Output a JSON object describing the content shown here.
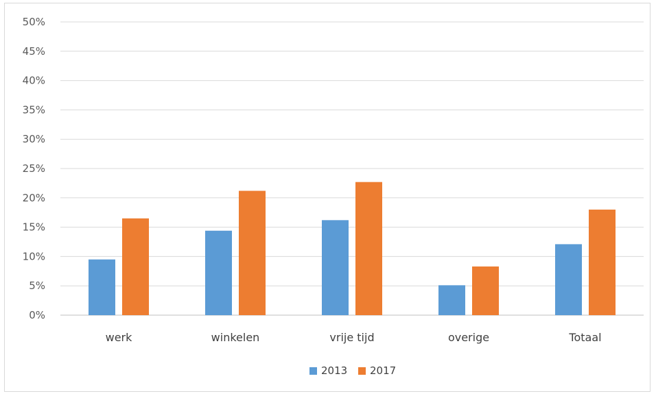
{
  "chart_data": {
    "type": "bar",
    "title": "",
    "xlabel": "",
    "ylabel": "",
    "categories": [
      "werk",
      "winkelen",
      "vrije tijd",
      "overige",
      "Totaal"
    ],
    "series": [
      {
        "name": "2013",
        "color": "#5b9bd5",
        "values": [
          9.5,
          14.4,
          16.2,
          5.1,
          12.1
        ]
      },
      {
        "name": "2017",
        "color": "#ed7d31",
        "values": [
          16.5,
          21.2,
          22.7,
          8.3,
          18.0
        ]
      }
    ],
    "ylim": [
      0,
      50
    ],
    "yticks": [
      0,
      5,
      10,
      15,
      20,
      25,
      30,
      35,
      40,
      45,
      50
    ],
    "ytick_labels": [
      "0%",
      "5%",
      "10%",
      "15%",
      "20%",
      "25%",
      "30%",
      "35%",
      "40%",
      "45%",
      "50%"
    ],
    "grid": true,
    "legend_position": "bottom"
  }
}
